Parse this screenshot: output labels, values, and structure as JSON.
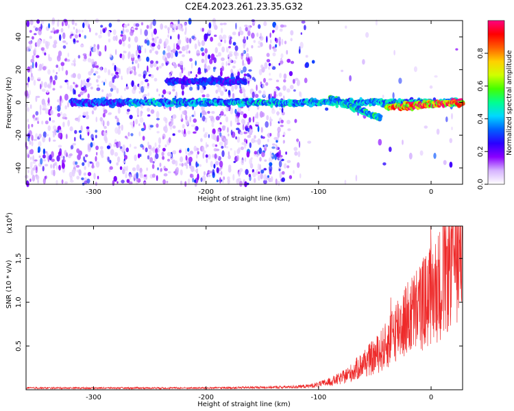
{
  "page": {
    "title": "C2E4.2023.261.23.35.G32"
  },
  "chart_data": [
    {
      "type": "heatmap",
      "title": "C2E4.2023.261.23.35.G32",
      "xlabel": "Height of straight line (km)",
      "ylabel": "Frequency (Hz)",
      "xlim": [
        -360,
        28
      ],
      "ylim": [
        -50,
        50
      ],
      "xticks": [
        -300,
        -200,
        -100,
        0
      ],
      "xtick_labels": [
        "-300",
        "-200",
        "-100",
        "0"
      ],
      "yticks": [
        -40,
        -20,
        0,
        20,
        40
      ],
      "ytick_labels": [
        "-40",
        "-20",
        "0",
        "20",
        "40"
      ],
      "colorbar": {
        "label": "Normalized spectral amplitude",
        "range": [
          0,
          1
        ],
        "ticks": [
          0.0,
          0.2,
          0.4,
          0.6,
          0.8
        ],
        "tick_labels": [
          "0.0",
          "0.2",
          "0.4",
          "0.6",
          "0.8"
        ],
        "colormap": [
          "#ffffff",
          "#d6b4ff",
          "#8a00ff",
          "#2a00ff",
          "#0060ff",
          "#00d8ff",
          "#00ff90",
          "#44ff00",
          "#d0ff00",
          "#ffd000",
          "#ff6000",
          "#ff0000",
          "#ff0080"
        ]
      },
      "features": [
        {
          "name": "main track",
          "x_range": [
            -320,
            28
          ],
          "freq_start": 0,
          "freq_end": 0,
          "amplitude": 0.45
        },
        {
          "name": "upper band",
          "x_range": [
            -235,
            -165
          ],
          "freq_start": 13,
          "freq_end": 13,
          "amplitude": 0.3
        },
        {
          "name": "descending segment",
          "x_range": [
            -90,
            -45
          ],
          "freq_start": 3,
          "freq_end": -10,
          "amplitude": 0.5
        },
        {
          "name": "strong segment",
          "x_range": [
            -40,
            28
          ],
          "freq_start": -3,
          "freq_end": 0,
          "amplitude": 0.95
        }
      ],
      "grid": false
    },
    {
      "type": "line",
      "xlabel": "Height of straight line (km)",
      "ylabel": "SNR (10 * v/v)",
      "yscale_label": "(x10",
      "yscale_exponent": "4",
      "xlim": [
        -360,
        28
      ],
      "ylim": [
        0,
        1.87
      ],
      "xticks": [
        -300,
        -200,
        -100,
        0
      ],
      "xtick_labels": [
        "-300",
        "-200",
        "-100",
        "0"
      ],
      "yticks": [
        0.5,
        1.0,
        1.5
      ],
      "ytick_labels": [
        "0.5",
        "1.0",
        "1.5"
      ],
      "series": [
        {
          "color": "#ee2a2a",
          "x": [
            -360,
            -300,
            -200,
            -130,
            -110,
            -100,
            -90,
            -80,
            -70,
            -60,
            -50,
            -40,
            -30,
            -20,
            -10,
            0,
            10,
            20,
            28
          ],
          "y": [
            0.02,
            0.02,
            0.02,
            0.03,
            0.04,
            0.06,
            0.09,
            0.13,
            0.2,
            0.3,
            0.38,
            0.5,
            0.72,
            0.82,
            0.95,
            1.08,
            1.25,
            1.55,
            1.75
          ]
        }
      ],
      "grid": false
    }
  ]
}
